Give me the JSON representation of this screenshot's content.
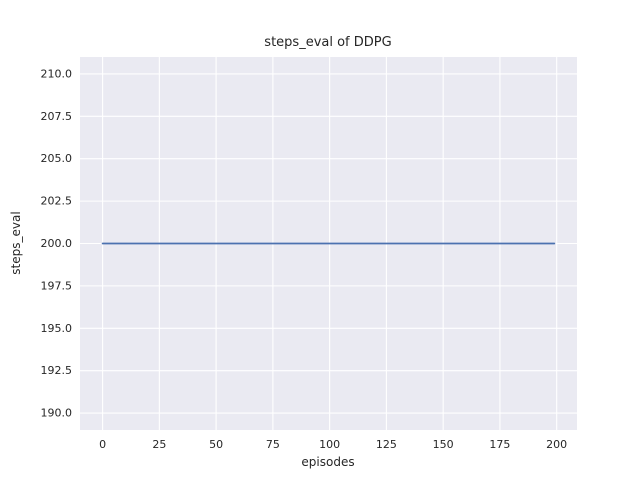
{
  "chart_data": {
    "type": "line",
    "title": "steps_eval of DDPG",
    "xlabel": "episodes",
    "ylabel": "steps_eval",
    "x": [
      0,
      199
    ],
    "series": [
      {
        "name": "steps_eval",
        "values": [
          200,
          200
        ],
        "color": "#4c72b0"
      }
    ],
    "xlim": [
      -9.95,
      208.95
    ],
    "ylim": [
      189.0,
      211.0
    ],
    "xticks": [
      0,
      25,
      50,
      75,
      100,
      125,
      150,
      175,
      200
    ],
    "xtick_labels": [
      "0",
      "25",
      "50",
      "75",
      "100",
      "125",
      "150",
      "175",
      "200"
    ],
    "yticks": [
      190.0,
      192.5,
      195.0,
      197.5,
      200.0,
      202.5,
      205.0,
      207.5,
      210.0
    ],
    "ytick_labels": [
      "190.0",
      "192.5",
      "195.0",
      "197.5",
      "200.0",
      "202.5",
      "205.0",
      "207.5",
      "210.0"
    ],
    "grid": true,
    "legend": false,
    "plot_bg": "#eaeaf2",
    "grid_color": "#ffffff",
    "text_color": "#262626"
  }
}
